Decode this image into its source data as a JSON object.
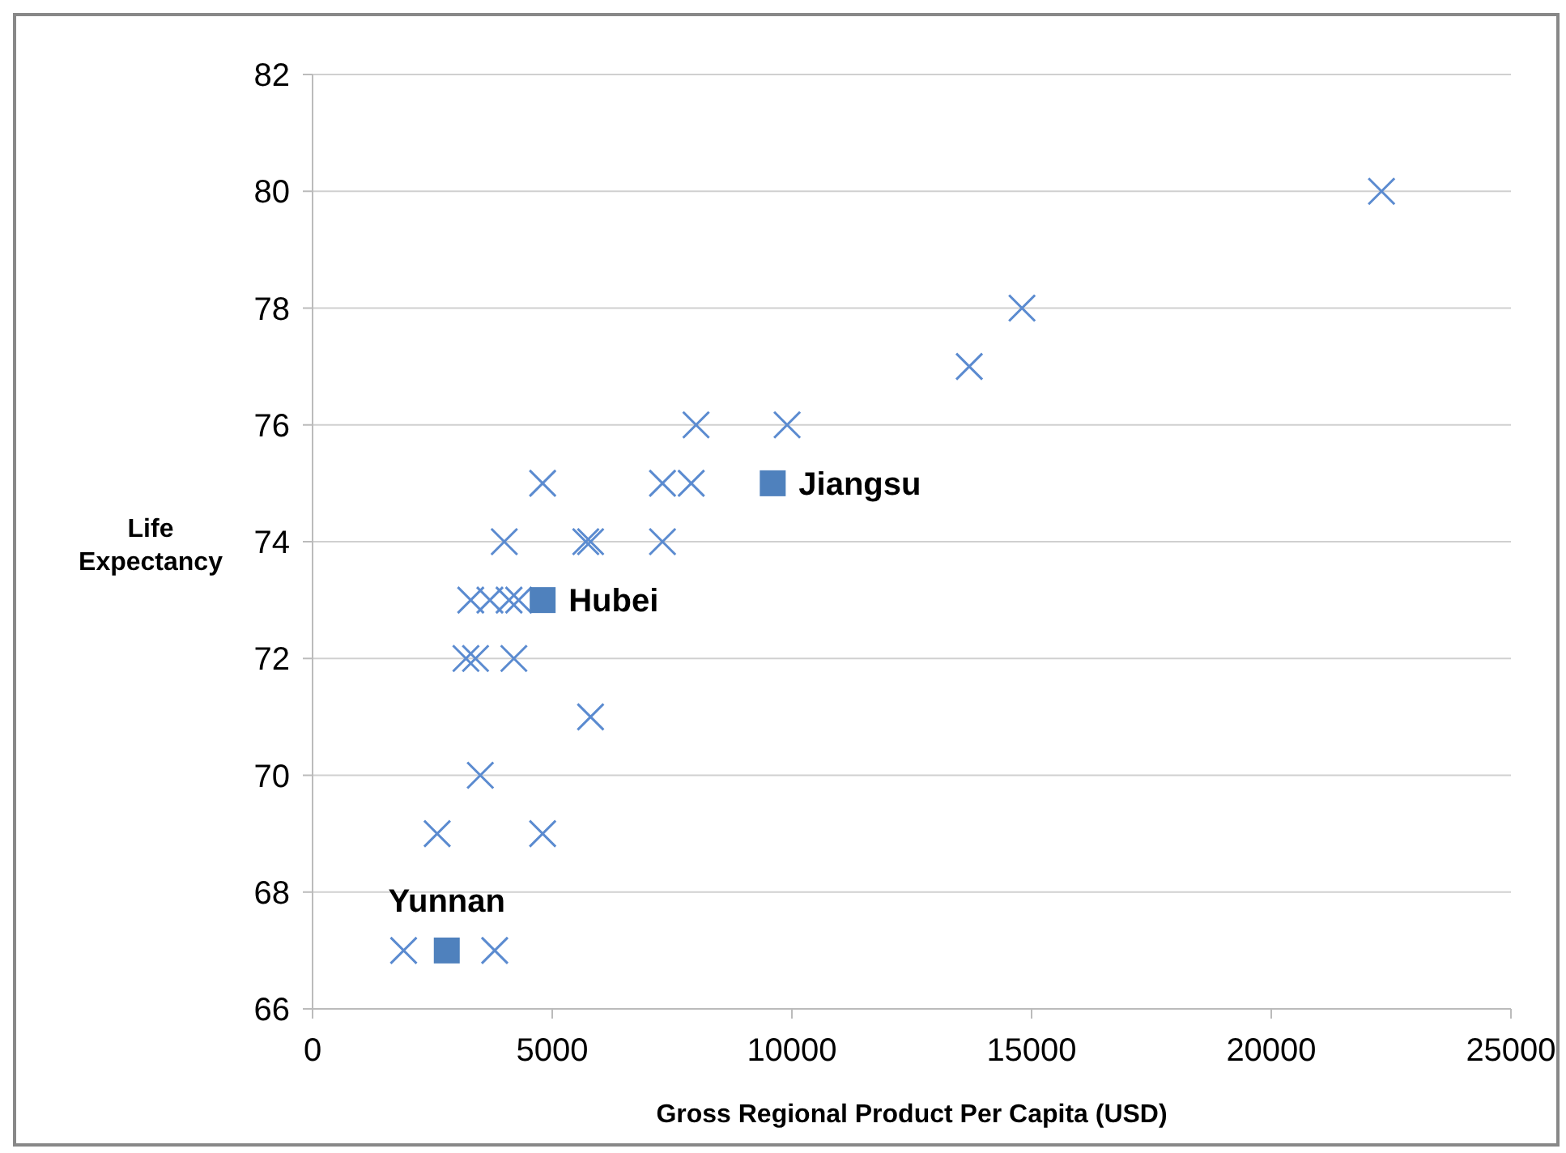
{
  "chart_data": {
    "type": "scatter",
    "xlabel": "Gross Regional Product Per Capita (USD)",
    "ylabel": "Life Expectancy",
    "xlim": [
      0,
      25000
    ],
    "xticks": [
      0,
      5000,
      10000,
      15000,
      20000,
      25000
    ],
    "ylim": [
      66,
      82
    ],
    "yticks": [
      66,
      68,
      70,
      72,
      74,
      76,
      78,
      80,
      82
    ],
    "grid": "y",
    "series": [
      {
        "color": "#5b8bd0",
        "marker": "cross",
        "x": [
          1900,
          3800,
          2600,
          4800,
          3500,
          5800,
          3200,
          3400,
          4200,
          3300,
          3700,
          4100,
          4300,
          4000,
          5700,
          5800,
          7300,
          4800,
          7300,
          7900,
          8000,
          9900,
          13700,
          14800,
          22300
        ],
        "values": [
          67,
          67,
          69,
          69,
          70,
          71,
          72,
          72,
          72,
          73,
          73,
          73,
          73,
          74,
          74,
          74,
          74,
          75,
          75,
          75,
          76,
          76,
          77,
          78,
          80
        ]
      },
      {
        "color": "#4f81bd",
        "marker": "square",
        "x": [
          2800,
          4800,
          9600
        ],
        "values": [
          67,
          73,
          75
        ]
      }
    ],
    "annotations": [
      {
        "text": "Yunnan",
        "x": 2800,
        "y": 67
      },
      {
        "text": "Hubei",
        "x": 4800,
        "y": 73
      },
      {
        "text": "Jiangsu",
        "x": 9600,
        "y": 75
      }
    ]
  }
}
